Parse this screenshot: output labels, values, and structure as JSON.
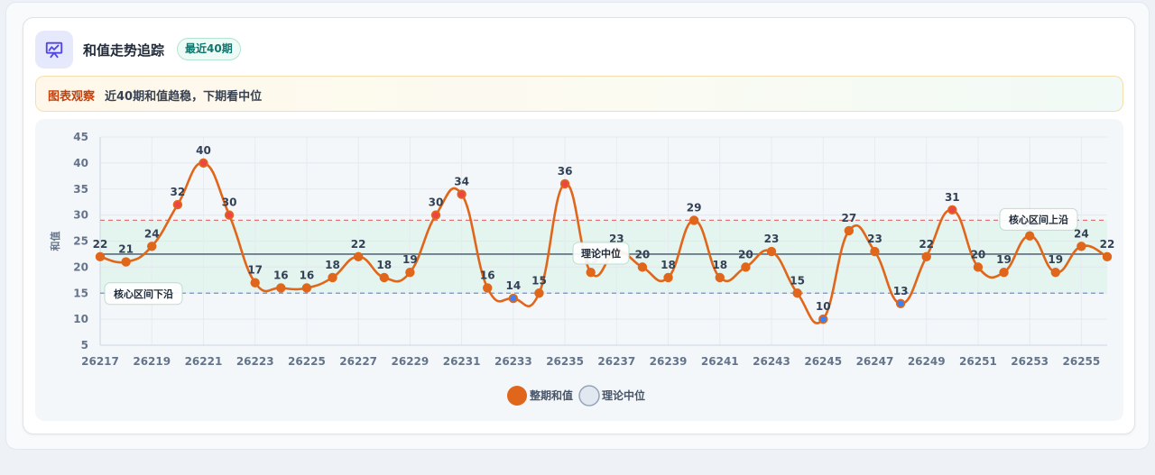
{
  "header": {
    "title": "和值走势追踪",
    "badge": "最近40期",
    "icon": "presentation-chart-icon"
  },
  "observation": {
    "label": "图表观察",
    "text": "近40期和值趋稳，下期看中位"
  },
  "colors": {
    "series": "#e0661b",
    "upper_line": "#e07474",
    "lower_line": "#6b8ee8",
    "median_line": "#5b6b80",
    "band": "#dff3ea",
    "low_point": "#3b82f6",
    "high_point": "#ef4444"
  },
  "chart_data": {
    "type": "line",
    "ylabel": "和值",
    "xlabel": "",
    "ylim": [
      5,
      45
    ],
    "yticks": [
      5,
      10,
      15,
      20,
      25,
      30,
      35,
      40,
      45
    ],
    "x": [
      26217,
      26218,
      26219,
      26220,
      26221,
      26222,
      26223,
      26224,
      26225,
      26226,
      26227,
      26228,
      26229,
      26230,
      26231,
      26232,
      26233,
      26234,
      26235,
      26236,
      26237,
      26238,
      26239,
      26240,
      26241,
      26242,
      26243,
      26244,
      26245,
      26246,
      26247,
      26248,
      26249,
      26250,
      26251,
      26252,
      26253,
      26254,
      26255,
      26256
    ],
    "xtick_labels": [
      "26217",
      "26219",
      "26221",
      "26223",
      "26225",
      "26227",
      "26229",
      "26231",
      "26233",
      "26235",
      "26237",
      "26239",
      "26241",
      "26243",
      "26245",
      "26247",
      "26249",
      "26251",
      "26253",
      "26255"
    ],
    "series": [
      {
        "name": "整期和值",
        "values": [
          22,
          21,
          24,
          32,
          40,
          30,
          17,
          16,
          16,
          18,
          22,
          18,
          19,
          30,
          34,
          16,
          14,
          15,
          36,
          19,
          23,
          20,
          18,
          29,
          18,
          20,
          23,
          15,
          10,
          27,
          23,
          13,
          22,
          31,
          20,
          19,
          26,
          19,
          24,
          22
        ]
      }
    ],
    "reference_lines": [
      {
        "name": "理论中位",
        "value": 22.5,
        "label": "理论中位",
        "style": "solid"
      },
      {
        "name": "核心区间上沿",
        "value": 29,
        "label": "核心区间上沿",
        "style": "dashed"
      },
      {
        "name": "核心区间下沿",
        "value": 15,
        "label": "核心区间下沿",
        "style": "dashed"
      }
    ],
    "legend": [
      "整期和值",
      "理论中位"
    ],
    "legend_position": "bottom",
    "grid": true
  }
}
